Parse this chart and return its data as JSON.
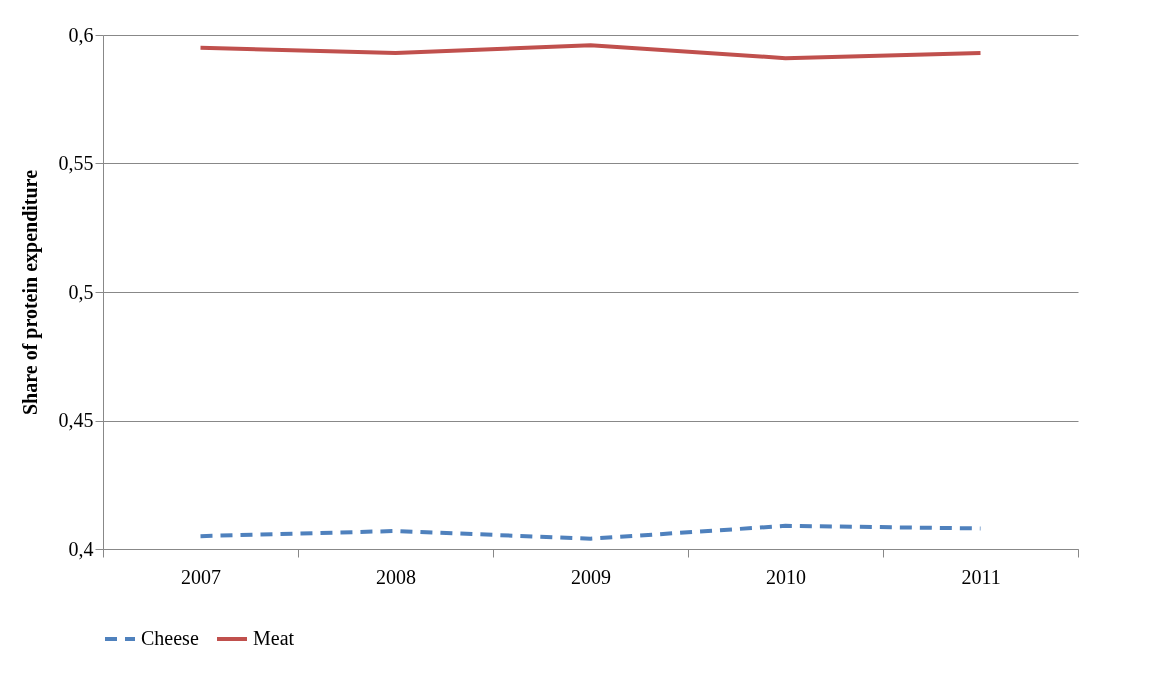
{
  "chart_data": {
    "type": "line",
    "ylabel": "Share of protein expenditure",
    "categories": [
      "2007",
      "2008",
      "2009",
      "2010",
      "2011"
    ],
    "series": [
      {
        "name": "Cheese",
        "color": "#4f81bd",
        "line_style": "dashed",
        "values": [
          0.405,
          0.407,
          0.404,
          0.409,
          0.408
        ]
      },
      {
        "name": "Meat",
        "color": "#c0504d",
        "line_style": "solid",
        "values": [
          0.595,
          0.593,
          0.596,
          0.591,
          0.593
        ]
      }
    ],
    "ylim": [
      0.4,
      0.6
    ],
    "yticks": [
      {
        "value": 0.4,
        "label": "0,4"
      },
      {
        "value": 0.45,
        "label": "0,45"
      },
      {
        "value": 0.5,
        "label": "0,5"
      },
      {
        "value": 0.55,
        "label": "0,55"
      },
      {
        "value": 0.6,
        "label": "0,6"
      }
    ],
    "grid": "y",
    "legend": "bottom",
    "marker": "none"
  }
}
